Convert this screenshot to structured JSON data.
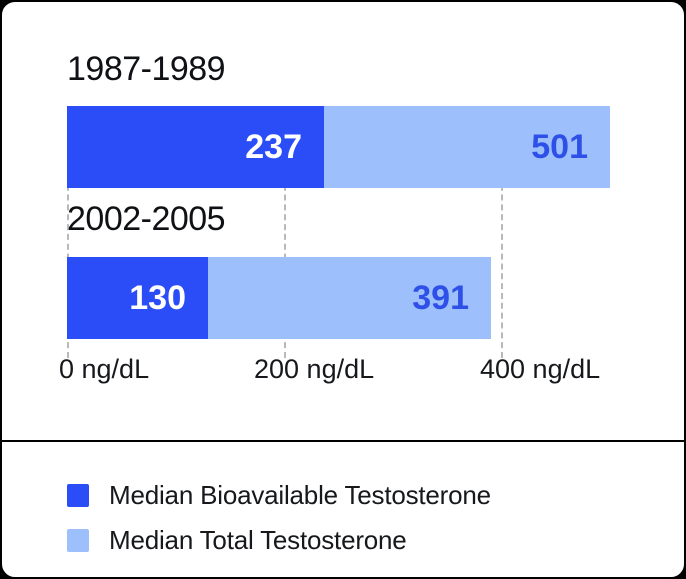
{
  "chart_data": {
    "type": "bar",
    "orientation": "horizontal",
    "stacked_overlay": true,
    "categories": [
      "1987-1989",
      "2002-2005"
    ],
    "series": [
      {
        "name": "Median Bioavailable Testosterone",
        "color": "#2b4df8",
        "values": [
          237,
          130
        ]
      },
      {
        "name": "Median Total Testosterone",
        "color": "#9dc0fc",
        "values": [
          501,
          391
        ]
      }
    ],
    "x_ticks": [
      {
        "value": 0,
        "label": "0 ng/dL"
      },
      {
        "value": 200,
        "label": "200 ng/dL"
      },
      {
        "value": 400,
        "label": "400 ng/dL"
      }
    ],
    "xlim": [
      0,
      400
    ],
    "unit": "ng/dL",
    "grid": "dashed-vertical",
    "legend_position": "bottom"
  },
  "legend": {
    "items": [
      {
        "label": "Median Bioavailable Testosterone",
        "color": "#2b4df8"
      },
      {
        "label": "Median Total Testosterone",
        "color": "#9dc0fc"
      }
    ]
  },
  "colors": {
    "bar_dark_blue": "#2b4df8",
    "bar_light_blue": "#9dc0fc",
    "value_text_on_light": "#2e4fe8",
    "value_text_on_dark": "#ffffff",
    "text": "#16181c",
    "gridline": "#b9b9b9",
    "card_background": "#ffffff",
    "outer_background": "#000000"
  }
}
